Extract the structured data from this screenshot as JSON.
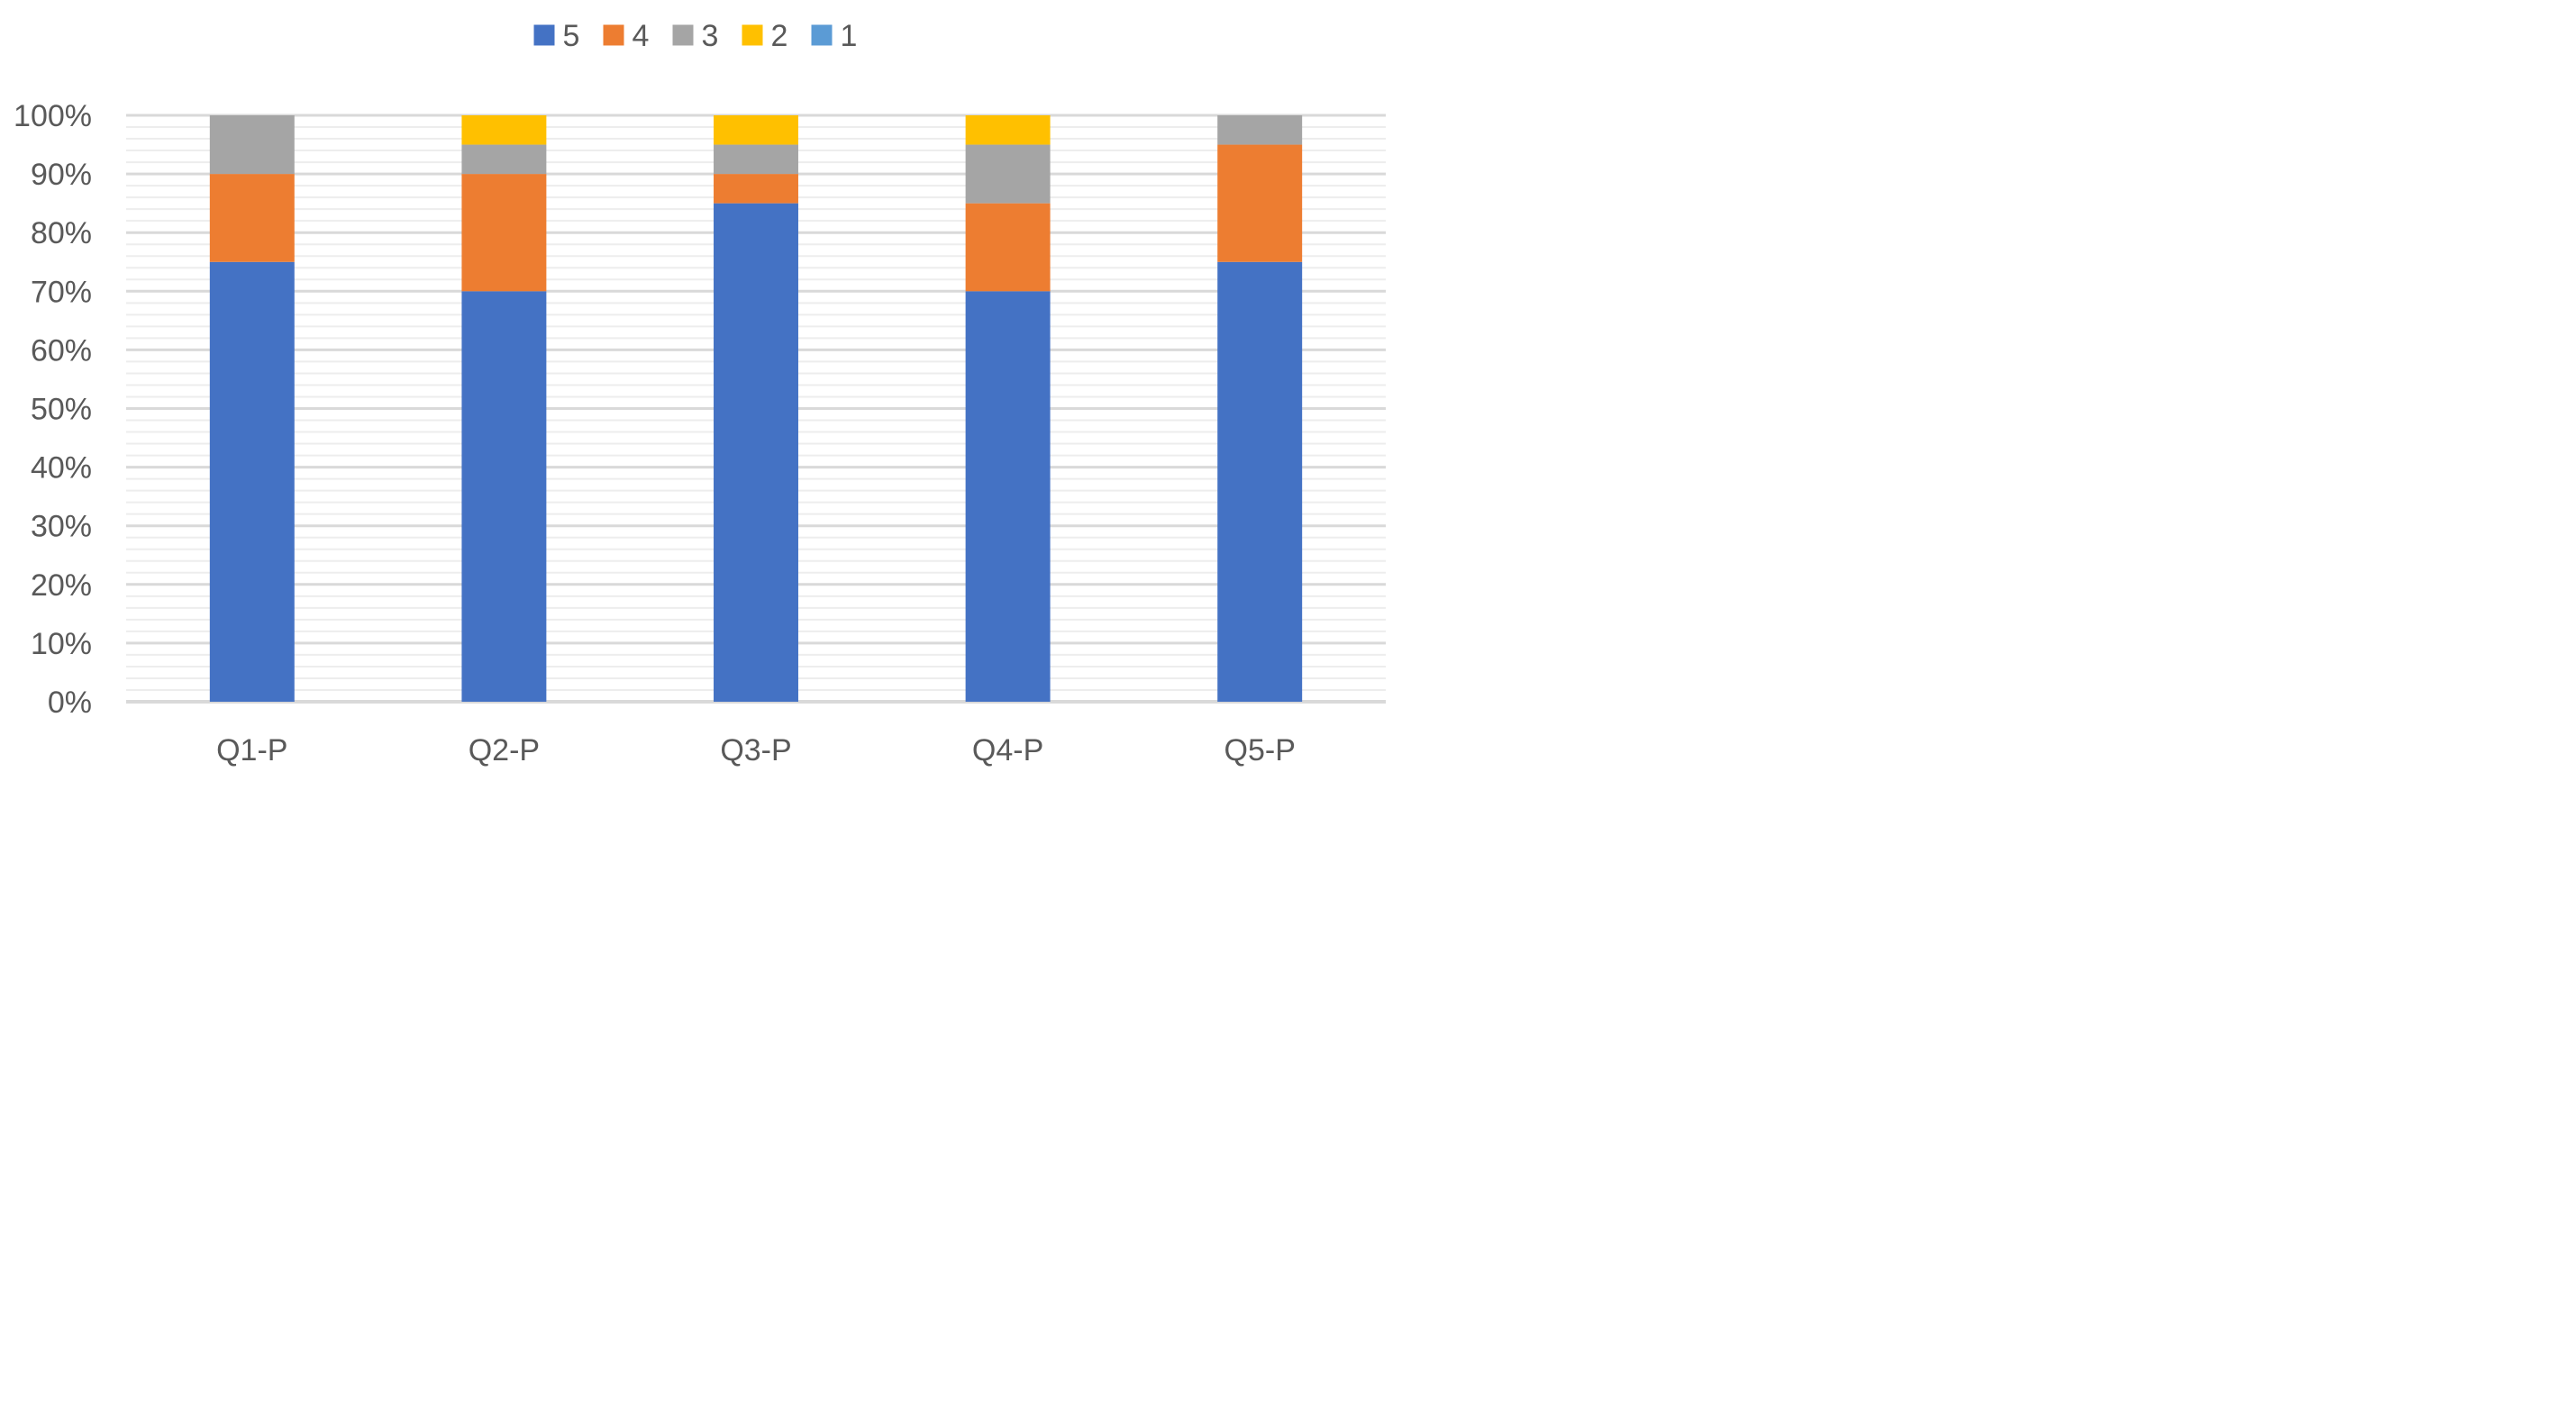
{
  "chart_data": {
    "type": "bar",
    "stacked": true,
    "categories": [
      "Q1-P",
      "Q2-P",
      "Q3-P",
      "Q4-P",
      "Q5-P"
    ],
    "series": [
      {
        "name": "5",
        "color": "#4472C4",
        "values": [
          75,
          70,
          85,
          70,
          75
        ]
      },
      {
        "name": "4",
        "color": "#ED7D31",
        "values": [
          15,
          20,
          5,
          15,
          20
        ]
      },
      {
        "name": "3",
        "color": "#A5A5A5",
        "values": [
          10,
          5,
          5,
          10,
          5
        ]
      },
      {
        "name": "2",
        "color": "#FFC000",
        "values": [
          0,
          5,
          5,
          5,
          0
        ]
      },
      {
        "name": "1",
        "color": "#5B9BD5",
        "values": [
          0,
          0,
          0,
          0,
          0
        ]
      }
    ],
    "ylim": [
      0,
      100
    ],
    "ytick_values": [
      0,
      10,
      20,
      30,
      40,
      50,
      60,
      70,
      80,
      90,
      100
    ],
    "ytick_labels": [
      "0%",
      "10%",
      "20%",
      "30%",
      "40%",
      "50%",
      "60%",
      "70%",
      "80%",
      "90%",
      "100%"
    ],
    "minor_gridlines": true,
    "grid": true,
    "legend_position": "top",
    "xlabel": "",
    "ylabel": "",
    "title": ""
  }
}
